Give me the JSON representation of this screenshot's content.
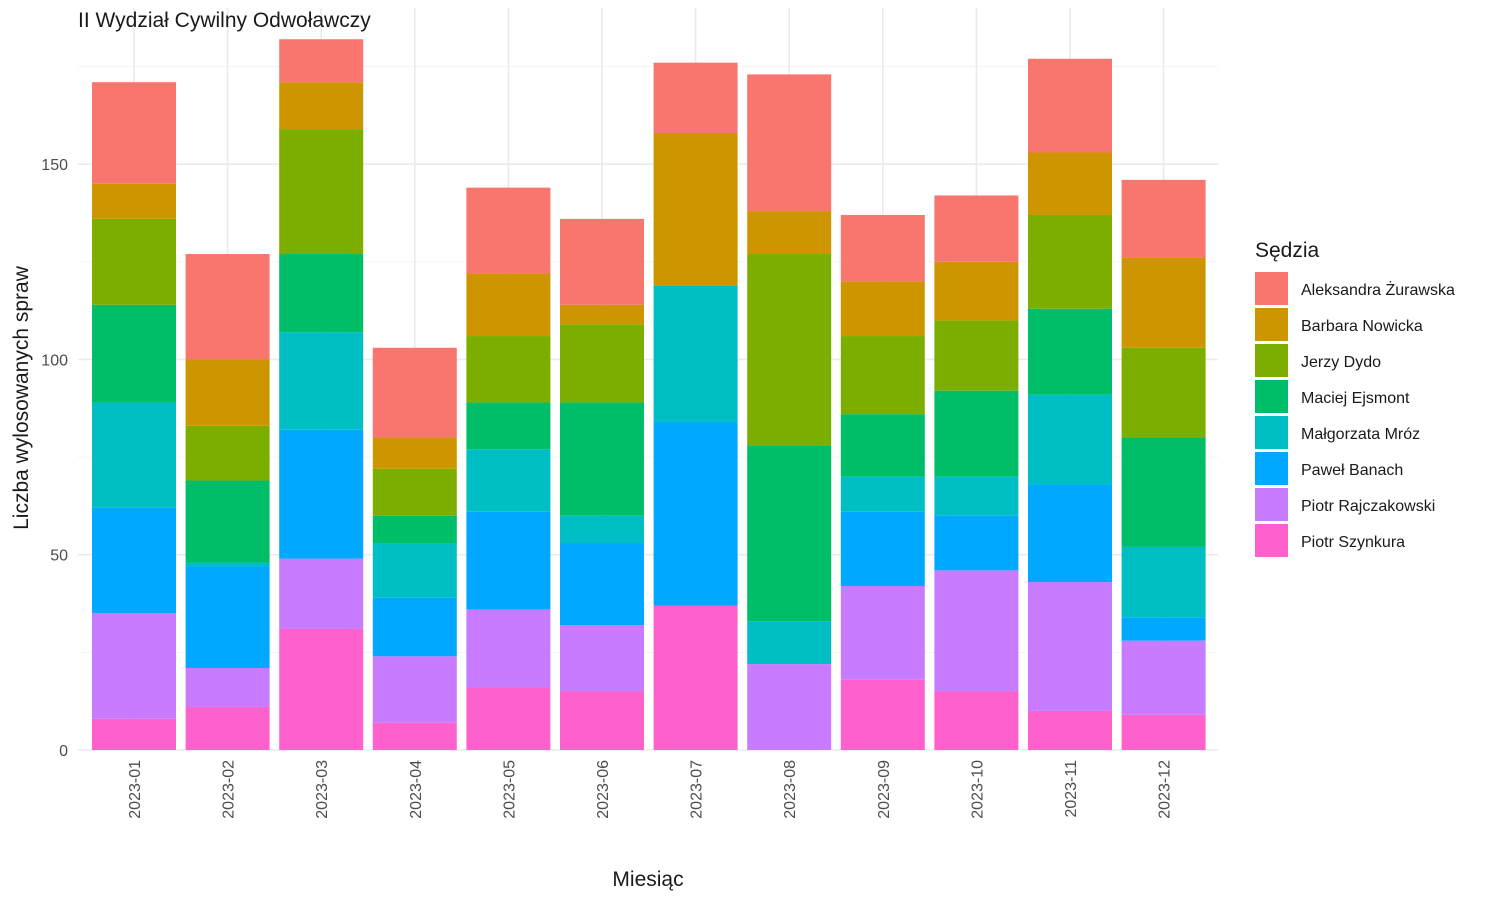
{
  "chart_data": {
    "type": "bar",
    "stacked": true,
    "title": "II Wydział Cywilny Odwoławczy",
    "xlabel": "Miesiąc",
    "ylabel": "Liczba wylosowanych spraw",
    "ylim": [
      0,
      190
    ],
    "yticks": [
      0,
      50,
      100,
      150
    ],
    "grid": true,
    "legend_title": "Sędzia",
    "legend_position": "right",
    "categories": [
      "2023-01",
      "2023-02",
      "2023-03",
      "2023-04",
      "2023-05",
      "2023-06",
      "2023-07",
      "2023-08",
      "2023-09",
      "2023-10",
      "2023-11",
      "2023-12"
    ],
    "series": [
      {
        "name": "Aleksandra Żurawska",
        "color": "#F8766D",
        "values": [
          26,
          27,
          11,
          23,
          22,
          22,
          18,
          35,
          17,
          17,
          24,
          20
        ]
      },
      {
        "name": "Barbara Nowicka",
        "color": "#CD9600",
        "values": [
          9,
          17,
          12,
          8,
          16,
          5,
          39,
          11,
          14,
          15,
          16,
          23
        ]
      },
      {
        "name": "Jerzy Dydo",
        "color": "#7CAE00",
        "values": [
          22,
          14,
          32,
          12,
          17,
          20,
          0,
          49,
          20,
          18,
          24,
          23
        ]
      },
      {
        "name": "Maciej Ejsmont",
        "color": "#00BE67",
        "values": [
          25,
          21,
          20,
          7,
          12,
          29,
          0,
          45,
          16,
          22,
          22,
          28
        ]
      },
      {
        "name": "Małgorzata Mróz",
        "color": "#00BFC4",
        "values": [
          27,
          1,
          25,
          14,
          16,
          7,
          35,
          11,
          9,
          10,
          23,
          18
        ]
      },
      {
        "name": "Paweł Banach",
        "color": "#00A9FF",
        "values": [
          27,
          26,
          33,
          15,
          25,
          21,
          47,
          0,
          19,
          14,
          25,
          6
        ]
      },
      {
        "name": "Piotr Rajczakowski",
        "color": "#C77CFF",
        "values": [
          27,
          10,
          18,
          17,
          20,
          17,
          0,
          22,
          24,
          31,
          33,
          19
        ]
      },
      {
        "name": "Piotr Szynkura",
        "color": "#FF61CC",
        "values": [
          8,
          11,
          31,
          7,
          16,
          15,
          37,
          0,
          18,
          15,
          10,
          9
        ]
      }
    ]
  }
}
